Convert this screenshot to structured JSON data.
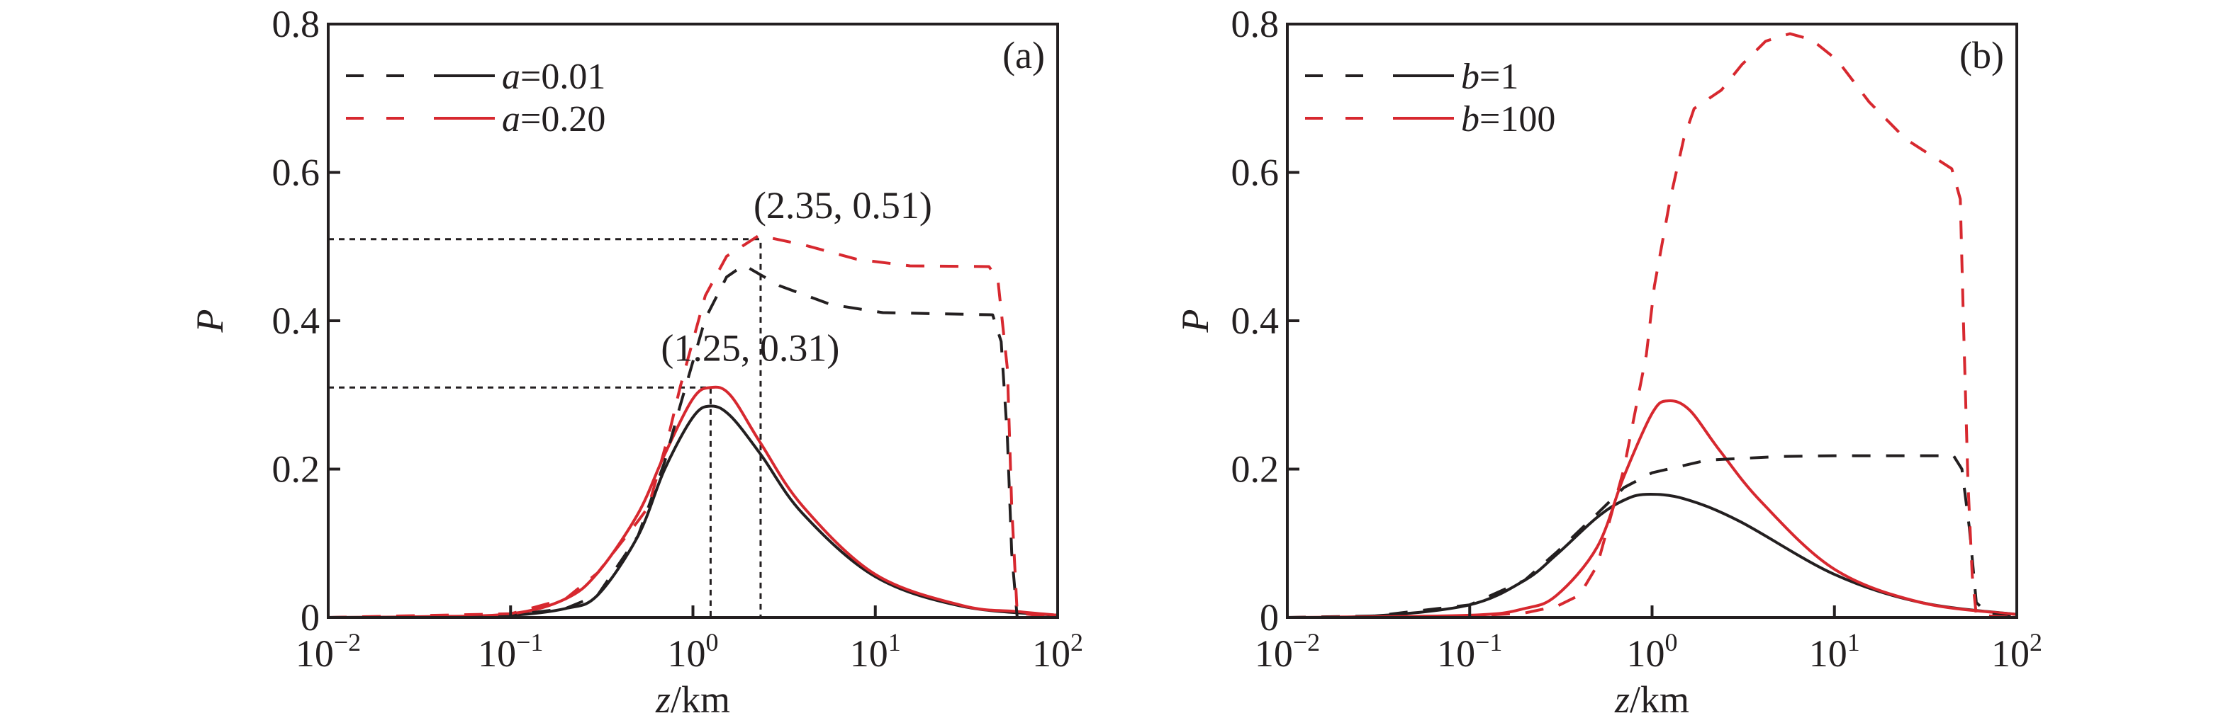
{
  "colors": {
    "black": "#231f20",
    "red": "#d7282f"
  },
  "chart_data": [
    {
      "type": "line",
      "panel_label": "(a)",
      "xlabel": {
        "var": "z",
        "unit": "/km"
      },
      "ylabel": "P",
      "xscale": "log",
      "xlim": [
        0.01,
        100
      ],
      "ylim": [
        0,
        0.8
      ],
      "xticks": [
        {
          "base": "10",
          "exp": "−2",
          "v": 0.01
        },
        {
          "base": "10",
          "exp": "−1",
          "v": 0.1
        },
        {
          "base": "10",
          "exp": "0",
          "v": 1
        },
        {
          "base": "10",
          "exp": "1",
          "v": 10
        },
        {
          "base": "10",
          "exp": "2",
          "v": 100
        }
      ],
      "yticks": [
        {
          "label": "0",
          "v": 0
        },
        {
          "label": "0.2",
          "v": 0.2
        },
        {
          "label": "0.4",
          "v": 0.4
        },
        {
          "label": "0.6",
          "v": 0.6
        },
        {
          "label": "0.8",
          "v": 0.8
        }
      ],
      "grid": false,
      "legend_position": "top-left",
      "legend": [
        {
          "var": "a",
          "value": "=0.01",
          "color": "black"
        },
        {
          "var": "a",
          "value": "=0.20",
          "color": "red"
        }
      ],
      "series": [
        {
          "legend_index": 0,
          "style": "solid",
          "color": "black",
          "x": [
            0.01,
            0.03,
            0.1,
            0.2,
            0.3,
            0.5,
            0.7,
            1.0,
            1.25,
            1.6,
            2.35,
            4,
            10,
            30,
            100
          ],
          "y": [
            0,
            0.0005,
            0.003,
            0.012,
            0.03,
            0.11,
            0.2,
            0.27,
            0.285,
            0.272,
            0.22,
            0.14,
            0.055,
            0.015,
            0.003
          ]
        },
        {
          "legend_index": 1,
          "style": "solid",
          "color": "red",
          "x": [
            0.01,
            0.03,
            0.1,
            0.2,
            0.3,
            0.5,
            0.7,
            1.0,
            1.25,
            1.6,
            2.35,
            4,
            10,
            30,
            60,
            100
          ],
          "y": [
            0,
            0.001,
            0.005,
            0.025,
            0.06,
            0.14,
            0.22,
            0.295,
            0.31,
            0.3,
            0.235,
            0.15,
            0.058,
            0.016,
            0.008,
            0.003
          ]
        },
        {
          "legend_index": 0,
          "style": "dashed",
          "color": "black",
          "x": [
            0.01,
            0.1,
            0.2,
            0.3,
            0.5,
            0.7,
            0.85,
            1.17,
            1.53,
            1.9,
            3,
            5.7,
            11,
            44,
            49,
            53,
            56,
            60,
            100
          ],
          "y": [
            0,
            0.003,
            0.012,
            0.03,
            0.11,
            0.21,
            0.285,
            0.403,
            0.459,
            0.475,
            0.447,
            0.422,
            0.411,
            0.408,
            0.372,
            0.242,
            0.087,
            0,
            0
          ]
        },
        {
          "legend_index": 1,
          "style": "dashed",
          "color": "red",
          "x": [
            0.01,
            0.1,
            0.2,
            0.3,
            0.5,
            0.57,
            0.74,
            0.85,
            1.17,
            1.53,
            2.3,
            4.1,
            7.9,
            15.5,
            42,
            47,
            53,
            56,
            60,
            100
          ],
          "y": [
            0,
            0.005,
            0.025,
            0.06,
            0.13,
            0.149,
            0.248,
            0.31,
            0.434,
            0.487,
            0.515,
            0.502,
            0.483,
            0.474,
            0.473,
            0.456,
            0.335,
            0.149,
            0.006,
            0
          ]
        }
      ],
      "annotations": [
        {
          "text": "(2.35, 0.51)",
          "x": 2.35,
          "y": 0.51
        },
        {
          "text": "(1.25, 0.31)",
          "x": 1.25,
          "y": 0.31
        }
      ]
    },
    {
      "type": "line",
      "panel_label": "(b)",
      "xlabel": {
        "var": "z",
        "unit": "/km"
      },
      "ylabel": "P",
      "xscale": "log",
      "xlim": [
        0.01,
        100
      ],
      "ylim": [
        0,
        0.8
      ],
      "xticks": [
        {
          "base": "10",
          "exp": "−2",
          "v": 0.01
        },
        {
          "base": "10",
          "exp": "−1",
          "v": 0.1
        },
        {
          "base": "10",
          "exp": "0",
          "v": 1
        },
        {
          "base": "10",
          "exp": "1",
          "v": 10
        },
        {
          "base": "10",
          "exp": "2",
          "v": 100
        }
      ],
      "yticks": [
        {
          "label": "0",
          "v": 0
        },
        {
          "label": "0.2",
          "v": 0.2
        },
        {
          "label": "0.4",
          "v": 0.4
        },
        {
          "label": "0.6",
          "v": 0.6
        },
        {
          "label": "0.8",
          "v": 0.8
        }
      ],
      "grid": false,
      "legend_position": "top-left",
      "legend": [
        {
          "var": "b",
          "value": "=1",
          "color": "black"
        },
        {
          "var": "b",
          "value": "=100",
          "color": "red"
        }
      ],
      "series": [
        {
          "legend_index": 0,
          "style": "solid",
          "color": "black",
          "x": [
            0.01,
            0.03,
            0.1,
            0.2,
            0.3,
            0.5,
            0.7,
            0.93,
            1.5,
            3,
            10,
            30,
            100
          ],
          "y": [
            0,
            0.002,
            0.017,
            0.05,
            0.085,
            0.135,
            0.158,
            0.166,
            0.16,
            0.13,
            0.058,
            0.02,
            0.004
          ]
        },
        {
          "legend_index": 1,
          "style": "solid",
          "color": "red",
          "x": [
            0.01,
            0.1,
            0.2,
            0.3,
            0.5,
            0.7,
            1.0,
            1.22,
            1.6,
            2.35,
            4,
            10,
            30,
            100
          ],
          "y": [
            0,
            0.003,
            0.012,
            0.03,
            0.095,
            0.19,
            0.275,
            0.292,
            0.28,
            0.225,
            0.155,
            0.065,
            0.02,
            0.004
          ]
        },
        {
          "legend_index": 0,
          "style": "dashed",
          "color": "black",
          "x": [
            0.01,
            0.03,
            0.1,
            0.2,
            0.3,
            0.5,
            0.7,
            1,
            2,
            5,
            10,
            45,
            50,
            55,
            60,
            70,
            100
          ],
          "y": [
            0,
            0.002,
            0.017,
            0.05,
            0.088,
            0.14,
            0.175,
            0.195,
            0.212,
            0.217,
            0.218,
            0.218,
            0.2,
            0.12,
            0.02,
            0.005,
            0
          ]
        },
        {
          "legend_index": 1,
          "style": "dashed",
          "color": "red",
          "x": [
            0.01,
            0.1,
            0.2,
            0.3,
            0.4,
            0.5,
            0.7,
            0.93,
            1.03,
            1.26,
            1.49,
            1.7,
            2.4,
            3.1,
            4.2,
            5.7,
            7.5,
            10.4,
            15.5,
            24.6,
            44,
            49,
            51,
            54,
            57,
            60,
            100
          ],
          "y": [
            0,
            0.002,
            0.006,
            0.015,
            0.03,
            0.07,
            0.2,
            0.354,
            0.447,
            0.565,
            0.645,
            0.686,
            0.711,
            0.745,
            0.777,
            0.787,
            0.779,
            0.751,
            0.695,
            0.645,
            0.605,
            0.564,
            0.397,
            0.18,
            0.056,
            0.003,
            0
          ]
        }
      ],
      "annotations": []
    }
  ]
}
